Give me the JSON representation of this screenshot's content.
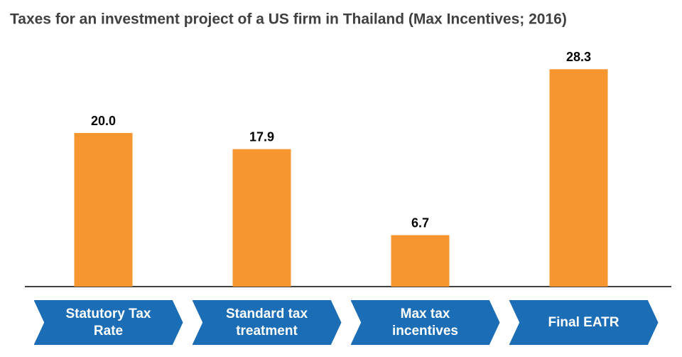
{
  "chart_data": {
    "type": "bar",
    "title": "Taxes for an investment project of a US firm in Thailand (Max Incentives; 2016)",
    "categories": [
      "Statutory Tax Rate",
      "Standard tax treatment",
      "Max tax incentives",
      "Final EATR"
    ],
    "values": [
      20,
      17.9,
      6.7,
      28.3
    ],
    "value_labels": [
      "20.0",
      "17.9",
      "6.7",
      "28.3"
    ],
    "color": "#f7962f",
    "ylim": [
      0,
      30
    ]
  }
}
